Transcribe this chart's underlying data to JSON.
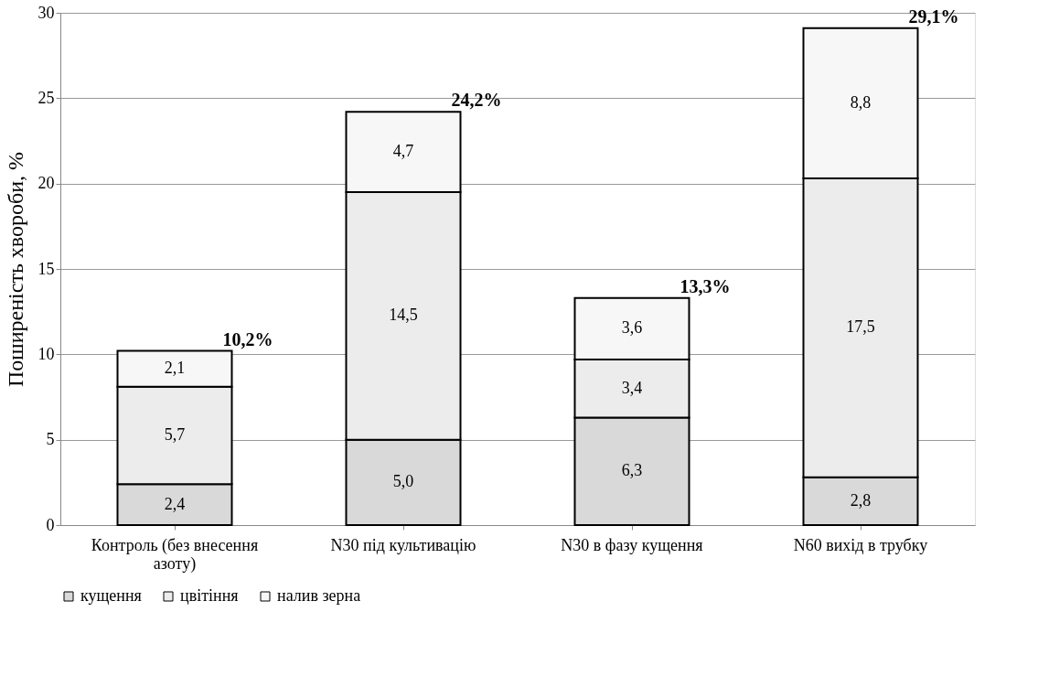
{
  "chart_data": {
    "type": "bar",
    "stacked": true,
    "ylabel": "Поширеність хвороби, %",
    "categories": [
      "Контроль (без внесення азоту)",
      "N30 під культивацію",
      "N30 в фазу кущення",
      "N60 вихід в трубку"
    ],
    "series": [
      {
        "name": "кущення",
        "color": "#d9d9d9",
        "values": [
          2.4,
          5.0,
          6.3,
          2.8
        ],
        "value_labels": [
          "2,4",
          "5,0",
          "6,3",
          "2,8"
        ]
      },
      {
        "name": "цвітіння",
        "color": "#ececec",
        "values": [
          5.7,
          14.5,
          3.4,
          17.5
        ],
        "value_labels": [
          "5,7",
          "14,5",
          "3,4",
          "17,5"
        ]
      },
      {
        "name": "налив зерна",
        "color": "#f7f7f7",
        "values": [
          2.1,
          4.7,
          3.6,
          8.8
        ],
        "value_labels": [
          "2,1",
          "4,7",
          "3,6",
          "8,8"
        ]
      }
    ],
    "totals": [
      "10,2%",
      "24,2%",
      "13,3%",
      "29,1%"
    ],
    "ylim": [
      0,
      30
    ],
    "yticks": [
      0,
      5,
      10,
      15,
      20,
      25,
      30
    ],
    "grid": "y",
    "legend": "bottom"
  }
}
